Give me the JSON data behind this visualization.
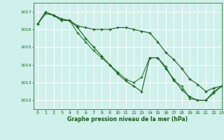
{
  "bg_color": "#cff0eb",
  "grid_color": "#ffffff",
  "line_color1": "#1a5c1a",
  "line_color2": "#2d7a2d",
  "line_color3": "#1a5c1a",
  "xlabel": "Graphe pression niveau de la mer (hPa)",
  "ylim": [
    1011.5,
    1017.5
  ],
  "xlim": [
    -0.5,
    23
  ],
  "yticks": [
    1012,
    1013,
    1014,
    1015,
    1016,
    1017
  ],
  "xticks": [
    0,
    1,
    2,
    3,
    4,
    5,
    6,
    7,
    8,
    9,
    10,
    11,
    12,
    13,
    14,
    15,
    16,
    17,
    18,
    19,
    20,
    21,
    22,
    23
  ],
  "series1": [
    1016.3,
    1016.9,
    1016.8,
    1016.6,
    1016.5,
    1016.2,
    1016.1,
    1016.0,
    1016.0,
    1016.0,
    1016.1,
    1016.1,
    1016.0,
    1015.9,
    1015.8,
    1015.3,
    1014.7,
    1014.3,
    1013.8,
    1013.2,
    1012.9,
    1012.5,
    1012.7,
    1012.8
  ],
  "series2": [
    1016.3,
    1016.9,
    1016.8,
    1016.5,
    1016.5,
    1015.8,
    1015.3,
    1014.8,
    1014.4,
    1014.0,
    1013.6,
    1013.2,
    1013.0,
    1013.3,
    1014.4,
    1014.4,
    1013.9,
    1013.1,
    1012.8,
    1012.1,
    1012.0,
    1012.0,
    1012.4,
    1012.8
  ],
  "series3": [
    1016.3,
    1017.0,
    1016.8,
    1016.5,
    1016.5,
    1016.1,
    1015.5,
    1015.0,
    1014.5,
    1014.0,
    1013.5,
    1013.1,
    1012.8,
    1012.5,
    1014.4,
    1014.4,
    1013.8,
    1013.2,
    1012.6,
    1012.2,
    1012.0,
    1012.0,
    1012.5,
    1012.8
  ]
}
